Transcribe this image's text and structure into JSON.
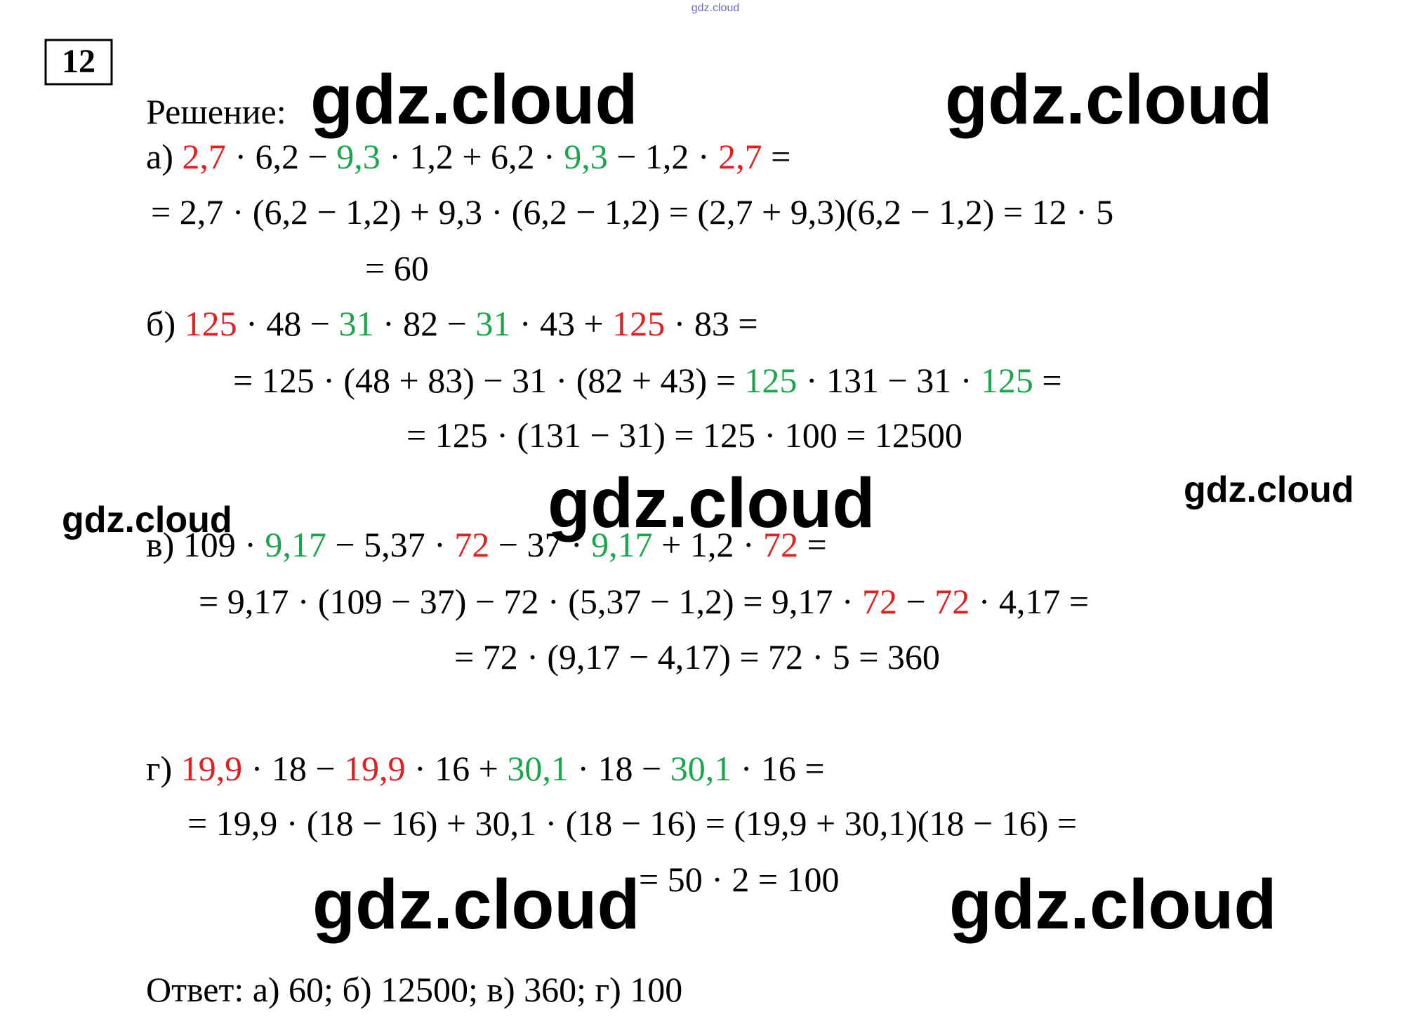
{
  "top_watermark": "gdz.cloud",
  "problem_number": "12",
  "heading": "Решение:",
  "watermarks": [
    "gdz.cloud",
    "gdz.cloud",
    "gdz.cloud",
    "gdz.cloud",
    "gdz.cloud",
    "gdz.cloud",
    "gdz.cloud"
  ],
  "lines": [
    {
      "segments": [
        {
          "text": "а) "
        },
        {
          "text": "2,7",
          "color": "#e41e1e"
        },
        {
          "text": " · 6,2 − "
        },
        {
          "text": "9,3",
          "color": "#1aa64a"
        },
        {
          "text": " · 1,2 + 6,2 · "
        },
        {
          "text": "9,3",
          "color": "#1aa64a"
        },
        {
          "text": " − 1,2 · "
        },
        {
          "text": "2,7",
          "color": "#e41e1e"
        },
        {
          "text": " ="
        }
      ]
    },
    {
      "segments": [
        {
          "text": "= 2,7 · (6,2 − 1,2) + 9,3 · (6,2 − 1,2) = (2,7 + 9,3)(6,2 − 1,2) = 12 · 5"
        }
      ]
    },
    {
      "segments": [
        {
          "text": "= 60"
        }
      ]
    },
    {
      "segments": [
        {
          "text": "б) "
        },
        {
          "text": "125",
          "color": "#e41e1e"
        },
        {
          "text": " · 48 − "
        },
        {
          "text": "31",
          "color": "#1aa64a"
        },
        {
          "text": " · 82 − "
        },
        {
          "text": "31",
          "color": "#1aa64a"
        },
        {
          "text": " · 43 + "
        },
        {
          "text": "125",
          "color": "#e41e1e"
        },
        {
          "text": " · 83 ="
        }
      ]
    },
    {
      "segments": [
        {
          "text": "= 125 · (48 + 83) − 31 · (82 + 43) = "
        },
        {
          "text": "125",
          "color": "#1aa64a"
        },
        {
          "text": " · 131 − 31 · "
        },
        {
          "text": "125",
          "color": "#1aa64a"
        },
        {
          "text": " ="
        }
      ]
    },
    {
      "segments": [
        {
          "text": "= 125 · (131 − 31) = 125 · 100 = 12500"
        }
      ]
    },
    {
      "segments": [
        {
          "text": "в) 109 · "
        },
        {
          "text": "9,17",
          "color": "#1aa64a"
        },
        {
          "text": " − 5,37 · "
        },
        {
          "text": "72",
          "color": "#e41e1e"
        },
        {
          "text": " − 37 · "
        },
        {
          "text": "9,17",
          "color": "#1aa64a"
        },
        {
          "text": " + 1,2 · "
        },
        {
          "text": "72",
          "color": "#e41e1e"
        },
        {
          "text": " ="
        }
      ]
    },
    {
      "segments": [
        {
          "text": "= 9,17 · (109 − 37) − 72 · (5,37 − 1,2) = 9,17 · "
        },
        {
          "text": "72",
          "color": "#e41e1e"
        },
        {
          "text": " − "
        },
        {
          "text": "72",
          "color": "#e41e1e"
        },
        {
          "text": " · 4,17 ="
        }
      ]
    },
    {
      "segments": [
        {
          "text": "= 72 · (9,17 − 4,17) = 72 · 5 = 360"
        }
      ]
    },
    {
      "segments": [
        {
          "text": "г) "
        },
        {
          "text": "19,9",
          "color": "#e41e1e"
        },
        {
          "text": " · 18 − "
        },
        {
          "text": "19,9",
          "color": "#e41e1e"
        },
        {
          "text": " · 16 + "
        },
        {
          "text": "30,1",
          "color": "#1aa64a"
        },
        {
          "text": " · 18 − "
        },
        {
          "text": "30,1",
          "color": "#1aa64a"
        },
        {
          "text": " · 16 ="
        }
      ]
    },
    {
      "segments": [
        {
          "text": "= 19,9 · (18 − 16) + 30,1 · (18 − 16) = (19,9 + 30,1)(18 − 16) ="
        }
      ]
    },
    {
      "segments": [
        {
          "text": "= 50 · 2 = 100"
        }
      ]
    }
  ],
  "answer": "Ответ: а) 60; б) 12500; в) 360; г) 100"
}
